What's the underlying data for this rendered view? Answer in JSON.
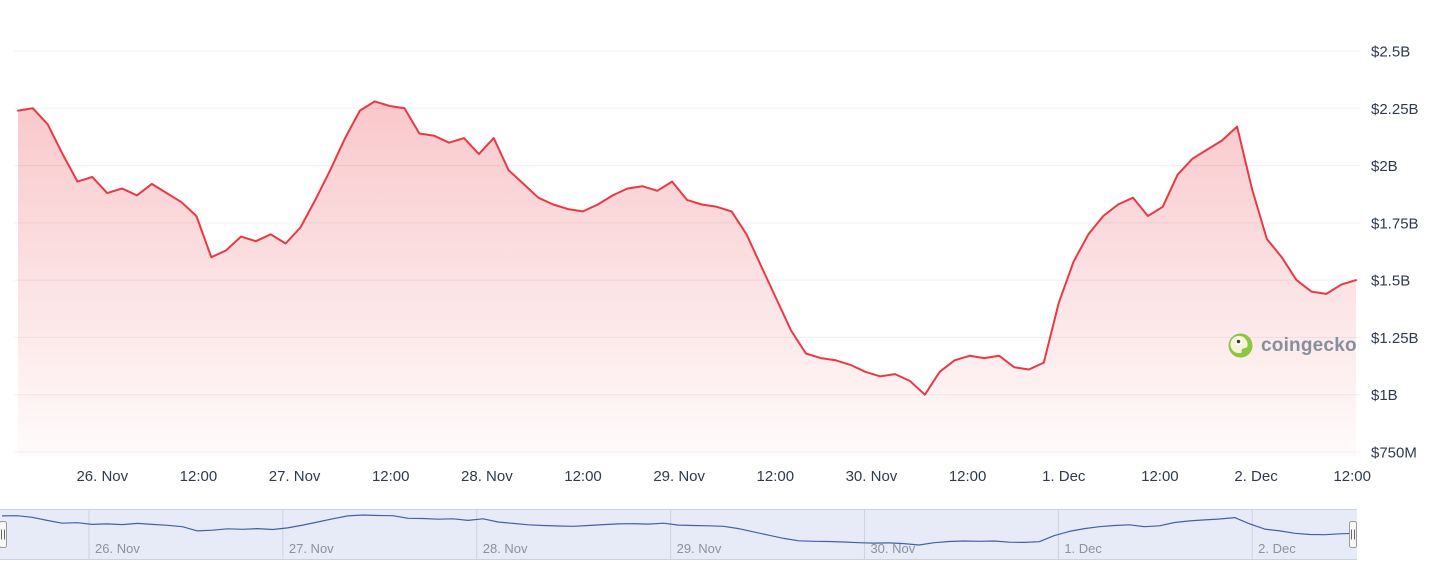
{
  "watermark": {
    "text": "coingecko"
  },
  "colors": {
    "line": "#ea3943",
    "area_top": "rgba(234,57,67,0.28)",
    "area_bottom": "rgba(234,57,67,0.02)",
    "grid": "#eef0f3",
    "axis_label": "#2e3a4e",
    "nav_band": "#e7ebf7",
    "nav_border": "#cbd1dd",
    "nav_line": "#3f62a5",
    "nav_label": "#8b919d",
    "nav_day_line": "#ccd2e0",
    "handle_fill": "#f7f7f7",
    "handle_stroke": "#999999",
    "handle_grip": "#666666",
    "logo_green": "#8dc63f",
    "logo_cream": "#f6f2dc",
    "logo_pupil": "#2c4d1f"
  },
  "chart_data": {
    "type": "area",
    "title": "",
    "legend": "none",
    "grid": "horizontal-only",
    "series": [
      {
        "name": "volume_usd",
        "unit": "billions USD",
        "color": "#ea3943",
        "values": [
          2.24,
          2.25,
          2.18,
          2.05,
          1.93,
          1.95,
          1.88,
          1.9,
          1.87,
          1.92,
          1.88,
          1.84,
          1.78,
          1.6,
          1.63,
          1.69,
          1.67,
          1.7,
          1.66,
          1.73,
          1.85,
          1.98,
          2.12,
          2.24,
          2.28,
          2.26,
          2.25,
          2.14,
          2.13,
          2.1,
          2.12,
          2.05,
          2.12,
          1.98,
          1.92,
          1.86,
          1.83,
          1.81,
          1.8,
          1.83,
          1.87,
          1.9,
          1.91,
          1.89,
          1.93,
          1.85,
          1.83,
          1.82,
          1.8,
          1.7,
          1.56,
          1.42,
          1.28,
          1.18,
          1.16,
          1.15,
          1.13,
          1.1,
          1.08,
          1.09,
          1.06,
          1.0,
          1.1,
          1.15,
          1.17,
          1.16,
          1.17,
          1.12,
          1.11,
          1.14,
          1.4,
          1.58,
          1.7,
          1.78,
          1.83,
          1.86,
          1.78,
          1.82,
          1.96,
          2.03,
          2.07,
          2.11,
          2.17,
          1.9,
          1.68,
          1.6,
          1.5,
          1.45,
          1.44,
          1.48,
          1.5
        ]
      }
    ],
    "x_axis": {
      "tick_labels": [
        "26. Nov",
        "12:00",
        "27. Nov",
        "12:00",
        "28. Nov",
        "12:00",
        "29. Nov",
        "12:00",
        "30. Nov",
        "12:00",
        "1. Dec",
        "12:00",
        "2. Dec",
        "12:00"
      ],
      "range_note": "approx 25 Nov 13:00 to 2 Dec 13:00, values sampled uniformly (~2h)"
    },
    "y_axis": {
      "tick_labels": [
        "$2.5B",
        "$2.25B",
        "$2B",
        "$1.75B",
        "$1.5B",
        "$1.25B",
        "$1B",
        "$750M"
      ],
      "tick_values_billions": [
        2.5,
        2.25,
        2.0,
        1.75,
        1.5,
        1.25,
        1.0,
        0.75
      ],
      "min_billions": 0.75,
      "max_billions": 2.5,
      "position": "right"
    },
    "navigator": {
      "labels": [
        "26. Nov",
        "27. Nov",
        "28. Nov",
        "29. Nov",
        "30. Nov",
        "1. Dec",
        "2. Dec"
      ],
      "selected_range": "full"
    }
  }
}
